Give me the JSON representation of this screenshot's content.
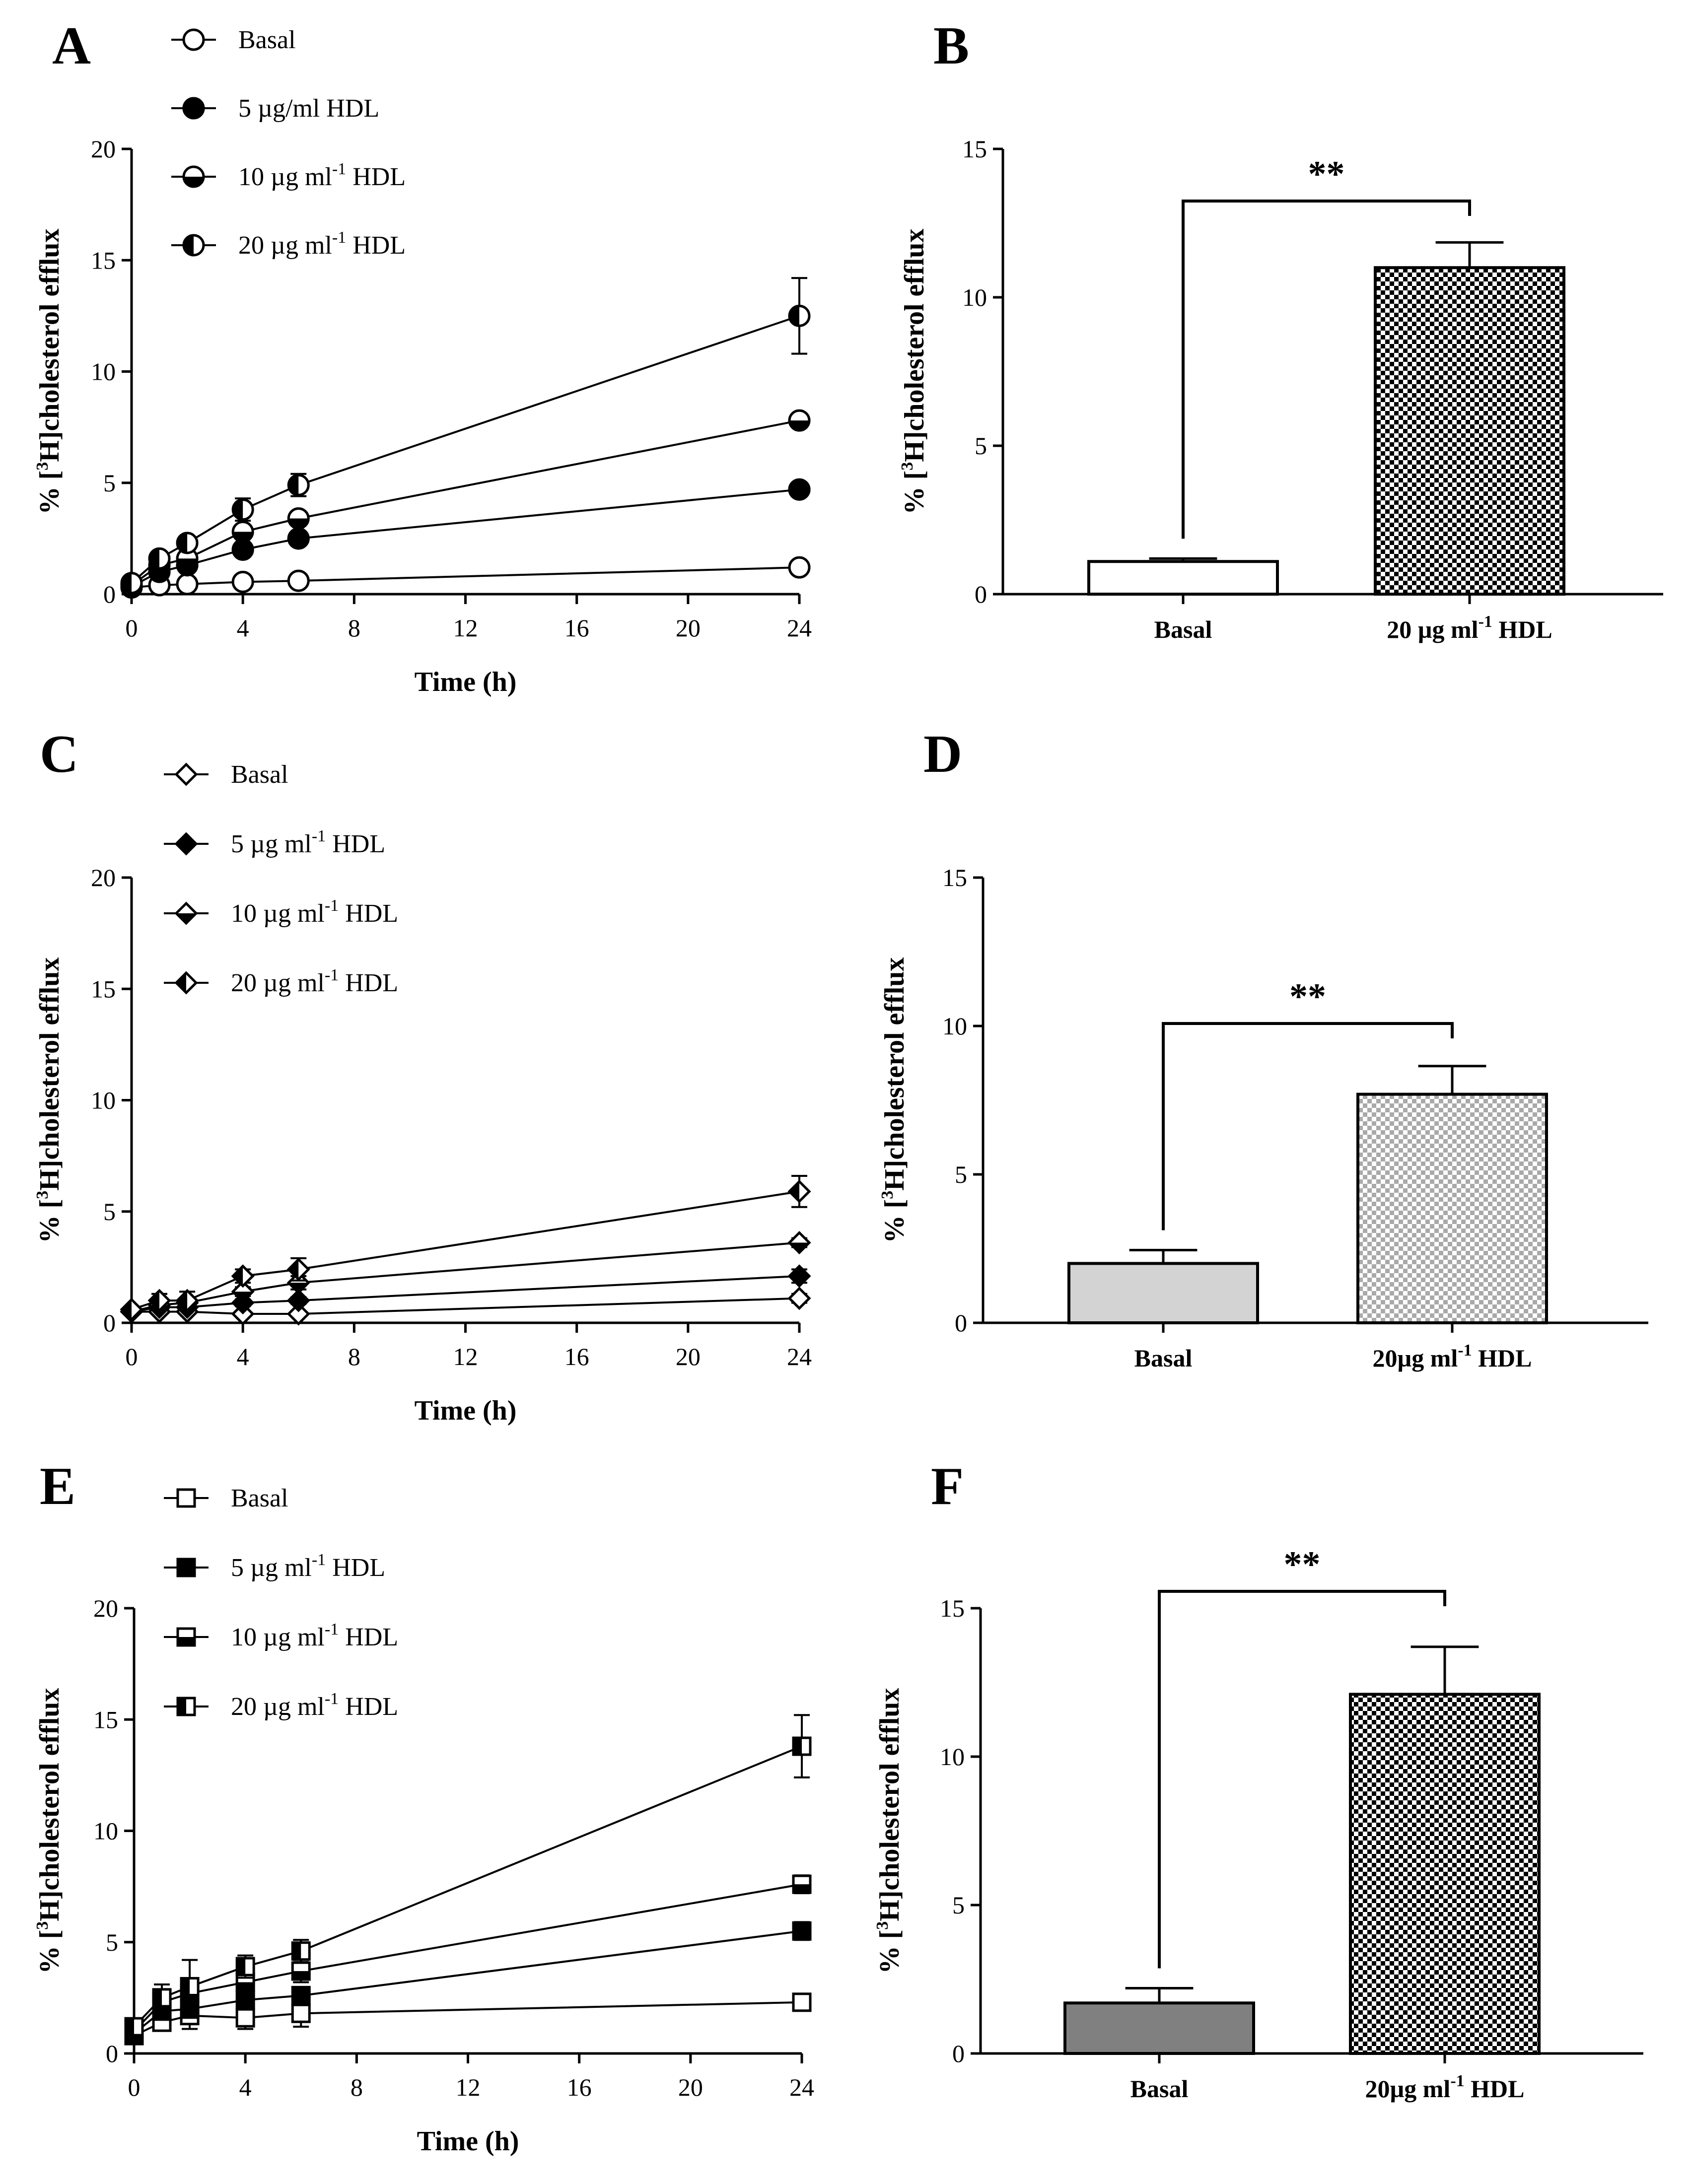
{
  "figure": {
    "panel_letters": [
      "A",
      "B",
      "C",
      "D",
      "E",
      "F"
    ],
    "colors": {
      "line": "#000000",
      "bar_basal_B": "#ffffff",
      "bar_basal_D": "#d3d3d3",
      "bar_basal_F": "#808080",
      "check_dark": "#000000",
      "check_light_D": "#a9a9a9"
    }
  },
  "chart_data": [
    {
      "panel": "A",
      "type": "line",
      "xlabel": "Time (h)",
      "ylabel": "% [3H]cholesterol efflux",
      "ylabel_parts": {
        "pre": "% [",
        "sup": "3",
        "post": "H]cholesterol efflux"
      },
      "xlim": [
        0,
        24
      ],
      "ylim": [
        0,
        20
      ],
      "xticks": [
        0,
        4,
        8,
        12,
        16,
        20,
        24
      ],
      "yticks": [
        0,
        5,
        10,
        15,
        20
      ],
      "marker": "circle",
      "x": [
        0,
        1,
        2,
        4,
        6,
        24
      ],
      "series": [
        {
          "name": "Basal",
          "label": {
            "pre": "Basal",
            "sup": "",
            "post": ""
          },
          "fill": "open",
          "values": [
            0.3,
            0.4,
            0.45,
            0.55,
            0.6,
            1.2
          ],
          "errors": [
            0.1,
            0.1,
            0.1,
            0.1,
            0.1,
            0.2
          ]
        },
        {
          "name": "5 µg/ml HDL",
          "label": {
            "pre": "5 µg/ml HDL",
            "sup": "",
            "post": ""
          },
          "fill": "full",
          "values": [
            0.35,
            1.0,
            1.3,
            2.0,
            2.5,
            4.7
          ],
          "errors": [
            0.1,
            0.15,
            0.15,
            0.2,
            0.2,
            0.2
          ]
        },
        {
          "name": "10 µg ml-1 HDL",
          "label": {
            "pre": "10 µg ml",
            "sup": "-1",
            "post": " HDL"
          },
          "fill": "bottom",
          "values": [
            0.4,
            1.3,
            1.6,
            2.8,
            3.4,
            7.8
          ],
          "errors": [
            0.1,
            0.2,
            0.2,
            0.3,
            0.3,
            0.3
          ]
        },
        {
          "name": "20 µg ml-1 HDL",
          "label": {
            "pre": "20 µg ml",
            "sup": "-1",
            "post": " HDL"
          },
          "fill": "left",
          "values": [
            0.5,
            1.6,
            2.3,
            3.8,
            4.9,
            12.5
          ],
          "errors": [
            0.15,
            0.3,
            0.3,
            0.5,
            0.5,
            1.7
          ]
        }
      ]
    },
    {
      "panel": "B",
      "type": "bar",
      "ylabel": "% [3H]cholesterol efflux",
      "ylabel_parts": {
        "pre": "% [",
        "sup": "3",
        "post": "H]cholesterol efflux"
      },
      "ylim": [
        0,
        15
      ],
      "yticks": [
        0,
        5,
        10,
        15
      ],
      "categories": [
        "Basal",
        "20 µg ml-1 HDL"
      ],
      "category_labels": [
        {
          "pre": "Basal",
          "sup": "",
          "post": ""
        },
        {
          "pre": "20 µg ml",
          "sup": "-1",
          "post": " HDL"
        }
      ],
      "values": [
        1.1,
        11.0
      ],
      "errors": [
        0.1,
        0.85
      ],
      "fills": [
        "white",
        "check-dark"
      ],
      "significance": "**"
    },
    {
      "panel": "C",
      "type": "line",
      "xlabel": "Time (h)",
      "ylabel": "% [3H]cholesterol efflux",
      "ylabel_parts": {
        "pre": "% [",
        "sup": "3",
        "post": "H]cholesterol efflux"
      },
      "xlim": [
        0,
        24
      ],
      "ylim": [
        0,
        20
      ],
      "xticks": [
        0,
        4,
        8,
        12,
        16,
        20,
        24
      ],
      "yticks": [
        0,
        5,
        10,
        15,
        20
      ],
      "marker": "diamond",
      "x": [
        0,
        1,
        2,
        4,
        6,
        24
      ],
      "series": [
        {
          "name": "Basal",
          "label": {
            "pre": "Basal",
            "sup": "",
            "post": ""
          },
          "fill": "open",
          "values": [
            0.5,
            0.5,
            0.5,
            0.4,
            0.4,
            1.1
          ],
          "errors": [
            0.1,
            0.1,
            0.1,
            0.1,
            0.1,
            0.2
          ]
        },
        {
          "name": "5 µg ml-1 HDL",
          "label": {
            "pre": "5 µg ml",
            "sup": "-1",
            "post": " HDL"
          },
          "fill": "full",
          "values": [
            0.5,
            0.7,
            0.7,
            0.9,
            1.0,
            2.1
          ],
          "errors": [
            0.1,
            0.1,
            0.1,
            0.15,
            0.15,
            0.3
          ]
        },
        {
          "name": "10 µg ml-1 HDL",
          "label": {
            "pre": "10 µg ml",
            "sup": "-1",
            "post": " HDL"
          },
          "fill": "bottom",
          "values": [
            0.5,
            0.8,
            0.9,
            1.4,
            1.8,
            3.6
          ],
          "errors": [
            0.1,
            0.2,
            0.2,
            0.2,
            0.3,
            0.2
          ]
        },
        {
          "name": "20 µg ml-1 HDL",
          "label": {
            "pre": "20 µg ml",
            "sup": "-1",
            "post": " HDL"
          },
          "fill": "left",
          "values": [
            0.6,
            1.0,
            1.0,
            2.1,
            2.4,
            5.9
          ],
          "errors": [
            0.1,
            0.3,
            0.4,
            0.3,
            0.5,
            0.7
          ]
        }
      ]
    },
    {
      "panel": "D",
      "type": "bar",
      "ylabel": "% [3H]cholesterol efflux",
      "ylabel_parts": {
        "pre": "% [",
        "sup": "3",
        "post": "H]cholesterol efflux"
      },
      "ylim": [
        0,
        15
      ],
      "yticks": [
        0,
        5,
        10,
        15
      ],
      "categories": [
        "Basal",
        "20µg ml-1 HDL"
      ],
      "category_labels": [
        {
          "pre": "Basal",
          "sup": "",
          "post": ""
        },
        {
          "pre": "20µg ml",
          "sup": "-1",
          "post": " HDL"
        }
      ],
      "values": [
        2.0,
        7.7
      ],
      "errors": [
        0.45,
        0.95
      ],
      "fills": [
        "light-gray",
        "check-light"
      ],
      "significance": "**"
    },
    {
      "panel": "E",
      "type": "line",
      "xlabel": "Time (h)",
      "ylabel": "% [3H]cholesterol efflux",
      "ylabel_parts": {
        "pre": "% [",
        "sup": "3",
        "post": "H]cholesterol efflux"
      },
      "xlim": [
        0,
        24
      ],
      "ylim": [
        0,
        20
      ],
      "xticks": [
        0,
        4,
        8,
        12,
        16,
        20,
        24
      ],
      "yticks": [
        0,
        5,
        10,
        15,
        20
      ],
      "marker": "square",
      "x": [
        0,
        1,
        2,
        4,
        6,
        24
      ],
      "series": [
        {
          "name": "Basal",
          "label": {
            "pre": "Basal",
            "sup": "",
            "post": ""
          },
          "fill": "open",
          "values": [
            0.8,
            1.4,
            1.7,
            1.6,
            1.8,
            2.3
          ],
          "errors": [
            0.2,
            0.3,
            0.6,
            0.5,
            0.6,
            0.2
          ]
        },
        {
          "name": "5 µg ml-1 HDL",
          "label": {
            "pre": "5 µg ml",
            "sup": "-1",
            "post": " HDL"
          },
          "fill": "full",
          "values": [
            0.9,
            1.9,
            2.0,
            2.4,
            2.6,
            5.5
          ],
          "errors": [
            0.2,
            0.3,
            0.4,
            0.3,
            0.3,
            0.4
          ]
        },
        {
          "name": "10 µg ml-1 HDL",
          "label": {
            "pre": "10 µg ml",
            "sup": "-1",
            "post": " HDL"
          },
          "fill": "bottom",
          "values": [
            1.0,
            2.3,
            2.7,
            3.2,
            3.7,
            7.6
          ],
          "errors": [
            0.2,
            0.5,
            0.6,
            0.4,
            0.5,
            0.4
          ]
        },
        {
          "name": "20 µg ml-1 HDL",
          "label": {
            "pre": "20 µg ml",
            "sup": "-1",
            "post": " HDL"
          },
          "fill": "left",
          "values": [
            1.2,
            2.5,
            3.0,
            3.9,
            4.6,
            13.8
          ],
          "errors": [
            0.3,
            0.6,
            1.2,
            0.5,
            0.5,
            1.4
          ]
        }
      ]
    },
    {
      "panel": "F",
      "type": "bar",
      "ylabel": "% [3H]cholesterol efflux",
      "ylabel_parts": {
        "pre": "% [",
        "sup": "3",
        "post": "H]cholesterol efflux"
      },
      "ylim": [
        0,
        15
      ],
      "yticks": [
        0,
        5,
        10,
        15
      ],
      "categories": [
        "Basal",
        "20µg ml-1 HDL"
      ],
      "category_labels": [
        {
          "pre": "Basal",
          "sup": "",
          "post": ""
        },
        {
          "pre": "20µg ml",
          "sup": "-1",
          "post": " HDL"
        }
      ],
      "values": [
        1.7,
        12.1
      ],
      "errors": [
        0.5,
        1.6
      ],
      "fills": [
        "dark-gray",
        "check-dark"
      ],
      "significance": "**"
    }
  ]
}
